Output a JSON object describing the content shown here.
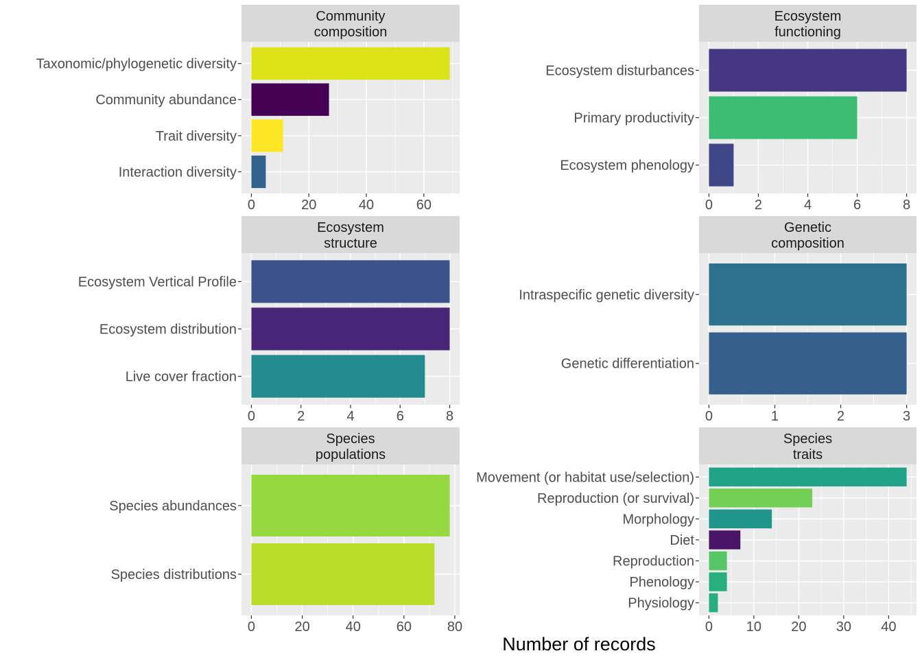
{
  "chart_data": {
    "type": "bar",
    "orientation": "horizontal",
    "xlabel": "Number of records",
    "grid": true,
    "legend": "none",
    "panels": [
      {
        "title": [
          "Community",
          "composition"
        ],
        "categories": [
          "Taxonomic/phylogenetic diversity",
          "Community abundance",
          "Trait diversity",
          "Interaction diversity"
        ],
        "values": [
          69,
          27,
          11,
          5
        ],
        "colors": [
          "#DCE319",
          "#440154",
          "#FDE725",
          "#33638D"
        ],
        "xlim": [
          -3.45,
          72.45
        ],
        "ticks": [
          0,
          20,
          40,
          60
        ]
      },
      {
        "title": [
          "Ecosystem",
          "functioning"
        ],
        "categories": [
          "Ecosystem disturbances",
          "Primary productivity",
          "Ecosystem phenology"
        ],
        "values": [
          8,
          6,
          1
        ],
        "colors": [
          "#453781",
          "#3CBB75",
          "#3F4788"
        ],
        "xlim": [
          -0.4,
          8.4
        ],
        "ticks": [
          0,
          2,
          4,
          6,
          8
        ]
      },
      {
        "title": [
          "Ecosystem",
          "structure"
        ],
        "categories": [
          "Ecosystem Vertical Profile",
          "Ecosystem distribution",
          "Live cover fraction"
        ],
        "values": [
          8,
          8,
          7
        ],
        "colors": [
          "#3B528B",
          "#482677",
          "#238A8D"
        ],
        "xlim": [
          -0.4,
          8.4
        ],
        "ticks": [
          0,
          2,
          4,
          6,
          8
        ]
      },
      {
        "title": [
          "Genetic",
          "composition"
        ],
        "categories": [
          "Intraspecific genetic diversity",
          "Genetic differentiation"
        ],
        "values": [
          3,
          3
        ],
        "colors": [
          "#2D718E",
          "#355F8D"
        ],
        "xlim": [
          -0.15,
          3.15
        ],
        "ticks": [
          0,
          1,
          2,
          3
        ]
      },
      {
        "title": [
          "Species",
          "populations"
        ],
        "categories": [
          "Species abundances",
          "Species distributions"
        ],
        "values": [
          78,
          72
        ],
        "colors": [
          "#95D840",
          "#B8DE29"
        ],
        "xlim": [
          -3.9,
          81.9
        ],
        "ticks": [
          0,
          20,
          40,
          60,
          80
        ]
      },
      {
        "title": [
          "Species",
          "traits"
        ],
        "categories": [
          "Movement (or habitat use/selection)",
          "Reproduction (or survival)",
          "Morphology",
          "Diet",
          "Reproduction",
          "Phenology",
          "Physiology"
        ],
        "values": [
          44,
          23,
          14,
          7,
          4,
          4,
          2
        ],
        "colors": [
          "#20A386",
          "#73D055",
          "#1F968B",
          "#481567",
          "#56C667",
          "#29AF7F",
          "#29AF7F"
        ],
        "xlim": [
          -2.2,
          46.2
        ],
        "ticks": [
          0,
          10,
          20,
          30,
          40
        ]
      }
    ]
  }
}
